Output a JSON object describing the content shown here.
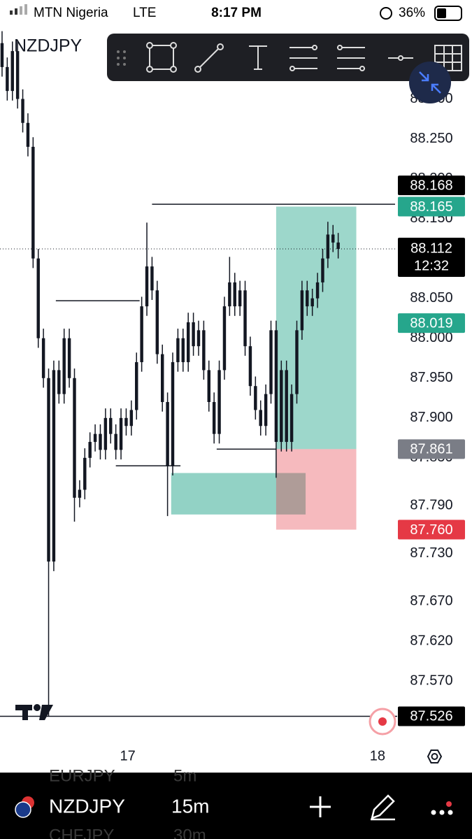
{
  "status_bar": {
    "carrier": "MTN Nigeria",
    "network": "LTE",
    "time": "8:17 PM",
    "battery": "36%"
  },
  "chart_data": {
    "type": "candlestick",
    "title": "NZDJPY",
    "open": [
      88.37,
      88.34,
      88.31,
      88.36,
      88.3,
      88.27,
      88.24,
      88.1,
      88.0,
      87.95,
      87.72,
      87.96,
      87.93,
      88.0,
      87.95,
      87.8,
      87.81,
      87.85,
      87.87,
      87.88,
      87.86,
      87.9,
      87.88,
      87.86,
      87.9,
      87.89,
      87.91,
      87.97,
      88.04,
      88.09,
      88.06,
      87.98,
      87.92,
      87.84,
      87.97,
      88.0,
      87.97,
      88.02,
      87.99,
      88.01,
      87.96,
      87.92,
      87.88,
      87.96,
      88.04,
      88.07,
      88.04,
      88.06,
      87.99,
      87.94,
      87.91,
      87.89,
      87.93,
      88.01,
      87.87,
      87.96,
      87.87,
      87.93,
      88.01,
      88.06,
      88.04,
      88.05,
      88.07,
      88.1,
      88.13,
      88.12
    ],
    "high": [
      88.385,
      88.352,
      88.372,
      88.372,
      88.312,
      88.282,
      88.252,
      88.112,
      88.012,
      87.962,
      87.972,
      87.972,
      88.012,
      88.012,
      87.962,
      87.822,
      87.862,
      87.882,
      87.892,
      87.892,
      87.912,
      87.912,
      87.892,
      87.912,
      87.912,
      87.922,
      87.982,
      88.052,
      88.145,
      88.102,
      88.072,
      87.992,
      87.932,
      87.982,
      88.012,
      88.012,
      88.032,
      88.032,
      88.022,
      88.022,
      87.972,
      87.932,
      87.972,
      88.052,
      88.102,
      88.082,
      88.072,
      88.072,
      88.002,
      87.952,
      87.922,
      87.942,
      88.022,
      88.022,
      87.972,
      87.972,
      87.942,
      88.022,
      88.072,
      88.072,
      88.062,
      88.082,
      88.112,
      88.146,
      88.142,
      88.132
    ],
    "low": [
      88.328,
      88.298,
      88.298,
      88.288,
      88.258,
      88.228,
      88.088,
      87.988,
      87.938,
      87.526,
      87.708,
      87.918,
      87.918,
      87.938,
      87.77,
      87.788,
      87.798,
      87.838,
      87.858,
      87.848,
      87.848,
      87.868,
      87.848,
      87.848,
      87.878,
      87.878,
      87.898,
      87.958,
      88.028,
      88.048,
      87.968,
      87.908,
      87.777,
      87.828,
      87.958,
      87.958,
      87.958,
      87.978,
      87.978,
      87.948,
      87.908,
      87.868,
      87.868,
      87.948,
      88.028,
      88.028,
      88.028,
      87.978,
      87.928,
      87.898,
      87.878,
      87.878,
      87.918,
      87.825,
      87.858,
      87.858,
      87.858,
      87.918,
      87.998,
      88.028,
      88.028,
      88.038,
      88.058,
      88.088,
      88.108,
      88.1
    ],
    "close": [
      88.34,
      88.31,
      88.36,
      88.3,
      88.27,
      88.24,
      88.1,
      88.0,
      87.95,
      87.72,
      87.96,
      87.93,
      88.0,
      87.95,
      87.8,
      87.81,
      87.85,
      87.87,
      87.88,
      87.86,
      87.9,
      87.88,
      87.86,
      87.9,
      87.89,
      87.91,
      87.97,
      88.04,
      88.09,
      88.06,
      87.98,
      87.92,
      87.84,
      87.97,
      88.0,
      87.97,
      88.02,
      87.99,
      88.01,
      87.96,
      87.92,
      87.88,
      87.96,
      88.04,
      88.07,
      88.04,
      88.06,
      87.99,
      87.94,
      87.91,
      87.89,
      87.93,
      88.01,
      87.87,
      87.96,
      87.87,
      87.93,
      88.01,
      88.06,
      88.04,
      88.05,
      88.07,
      88.1,
      88.13,
      88.12,
      88.112
    ],
    "color": "#131722",
    "xlim": [
      -0.4,
      76
    ],
    "xticks": [
      {
        "value": 24.3,
        "label": "17"
      },
      {
        "value": 72.6,
        "label": "18"
      }
    ],
    "ylim": [
      87.508,
      88.389
    ],
    "yticks": [
      {
        "value": 88.3,
        "label": "88.300"
      },
      {
        "value": 88.25,
        "label": "88.250"
      },
      {
        "value": 88.2,
        "label": "88.200"
      },
      {
        "value": 88.15,
        "label": "88.150"
      },
      {
        "value": 88.05,
        "label": "88.050"
      },
      {
        "value": 88.0,
        "label": "88.000"
      },
      {
        "value": 87.95,
        "label": "87.950"
      },
      {
        "value": 87.9,
        "label": "87.900"
      },
      {
        "value": 87.85,
        "label": "87.850"
      },
      {
        "value": 87.79,
        "label": "87.790"
      },
      {
        "value": 87.73,
        "label": "87.730"
      },
      {
        "value": 87.67,
        "label": "87.670"
      },
      {
        "value": 87.62,
        "label": "87.620"
      },
      {
        "value": 87.57,
        "label": "87.570"
      }
    ],
    "lines": [
      {
        "price": 88.168,
        "from": 29,
        "to": 76
      },
      {
        "price": 88.047,
        "from": 10.4,
        "to": 26.6
      },
      {
        "price": 87.84,
        "from": 22,
        "to": 34.5
      },
      {
        "price": 87.861,
        "from": 41.5,
        "to": 53
      }
    ],
    "position": {
      "entry": 87.861,
      "target": 88.165,
      "stop": {
        "value": 87.76,
        "label": "87.760"
      },
      "from": 53,
      "to": 68.5
    },
    "zone": {
      "top": 87.831,
      "bottom": 87.779,
      "from": 32.7,
      "to": 58.7
    },
    "current_price": 88.112,
    "countdown": "12:32",
    "alert_price": 88.019,
    "low_price": 87.526
  },
  "bottom_bar": {
    "symbol": "NZDJPY",
    "interval": "15m",
    "faded": [
      {
        "symbol": "EURJPY",
        "interval": "5m"
      },
      {
        "symbol": "CHFJPY",
        "interval": "30m"
      }
    ]
  }
}
